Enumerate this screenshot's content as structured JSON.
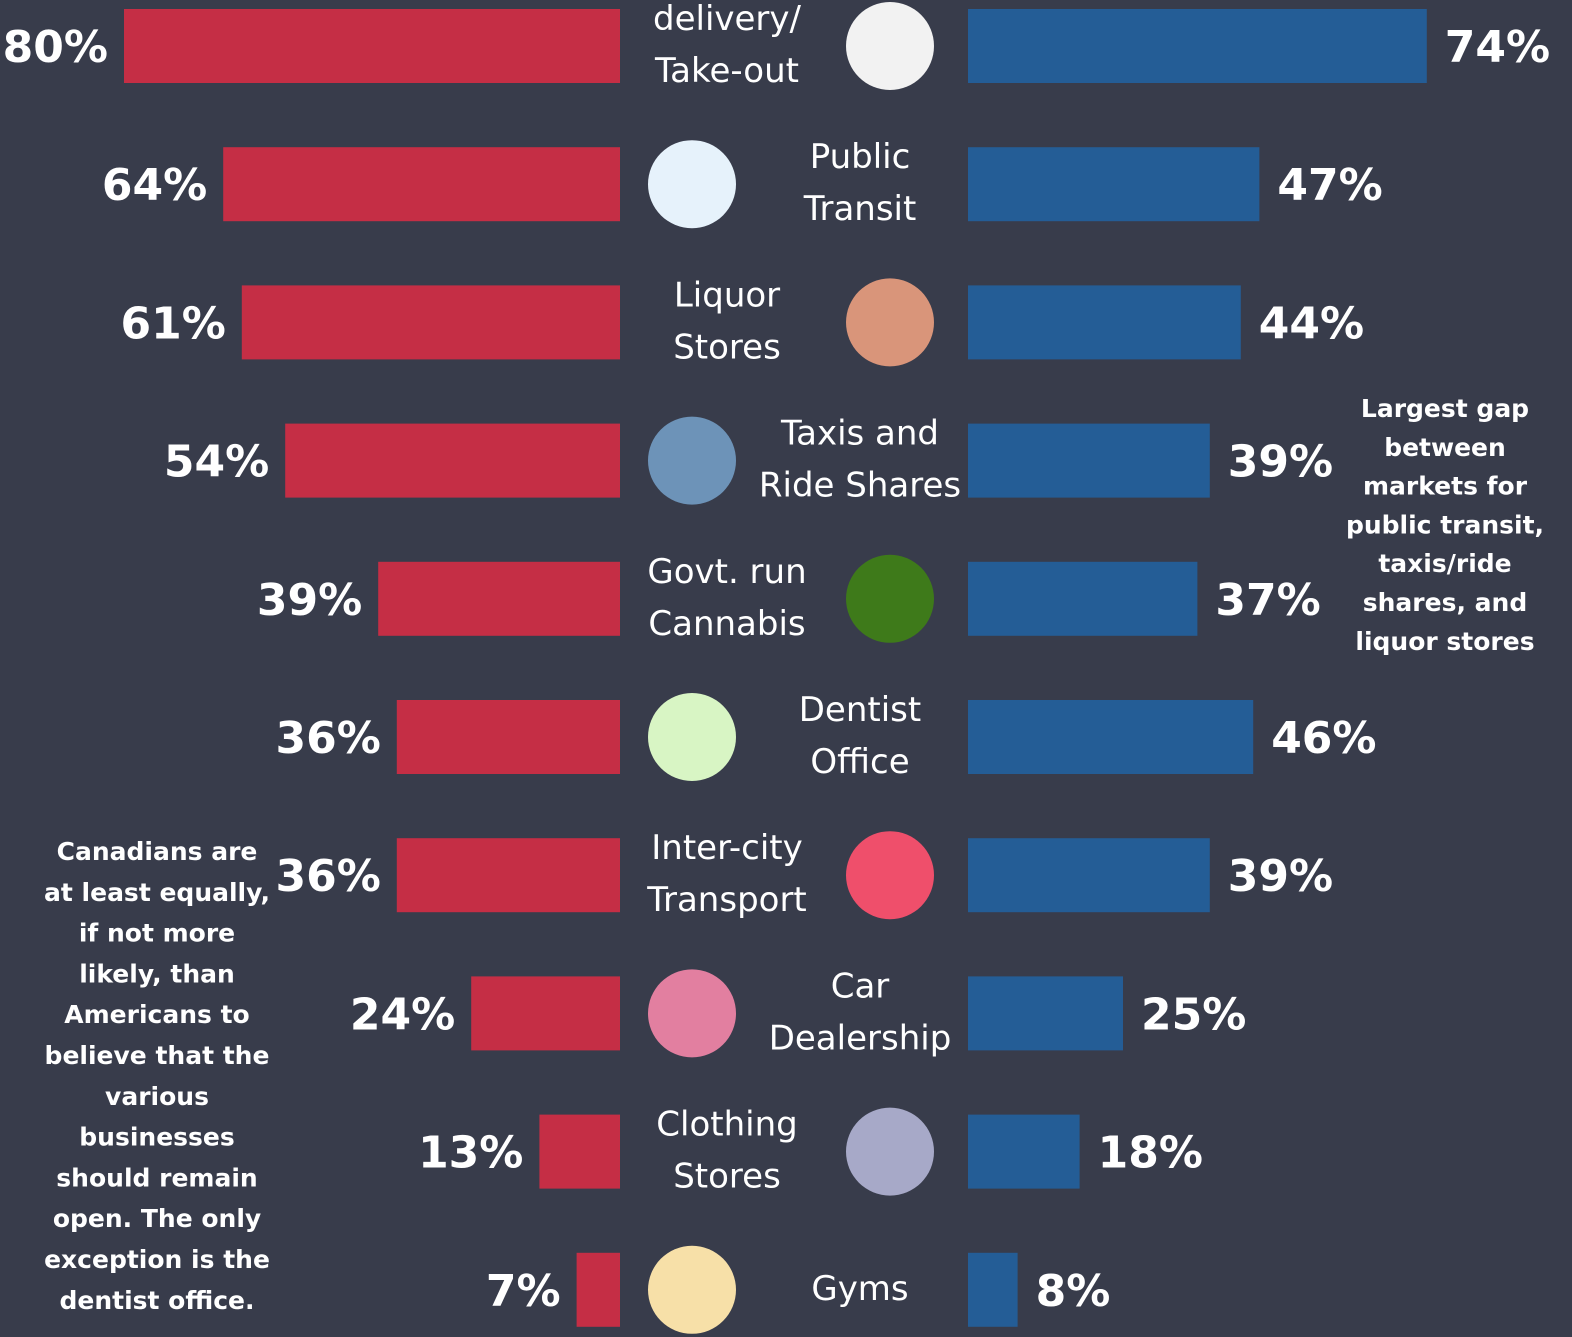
{
  "chart_data": {
    "type": "butterfly",
    "categories": [
      [
        "delivery/",
        "Take-out"
      ],
      [
        "Public",
        "Transit"
      ],
      [
        "Liquor",
        "Stores"
      ],
      [
        "Taxis and",
        "Ride Shares"
      ],
      [
        "Govt. run",
        "Cannabis"
      ],
      [
        "Dentist",
        "Office"
      ],
      [
        "Inter-city",
        "Transport"
      ],
      [
        "Car",
        "Dealership"
      ],
      [
        "Clothing",
        "Stores"
      ],
      [
        "Gyms"
      ]
    ],
    "series": [
      {
        "color": "#c52e45",
        "values": [
          80,
          64,
          61,
          54,
          39,
          36,
          36,
          24,
          13,
          7
        ],
        "value_labels": [
          "80%",
          "64%",
          "61%",
          "54%",
          "39%",
          "36%",
          "36%",
          "24%",
          "13%",
          "7%"
        ]
      },
      {
        "color": "#245d96",
        "values": [
          74,
          47,
          44,
          39,
          37,
          46,
          39,
          25,
          18,
          8
        ],
        "value_labels": [
          "74%",
          "47%",
          "44%",
          "39%",
          "37%",
          "46%",
          "39%",
          "25%",
          "18%",
          "8%"
        ]
      }
    ],
    "annotations": [
      [
        "Largest gap",
        "between",
        "markets for",
        "public transit,",
        "taxis/ride",
        "shares, and",
        "liquor stores"
      ],
      [
        "Canadians are",
        "at least equally,",
        "if not more",
        "likely, than",
        "Americans to",
        "believe that the",
        "various",
        "businesses",
        "should remain",
        "open. The only",
        "exception is the",
        "dentist office."
      ]
    ]
  }
}
